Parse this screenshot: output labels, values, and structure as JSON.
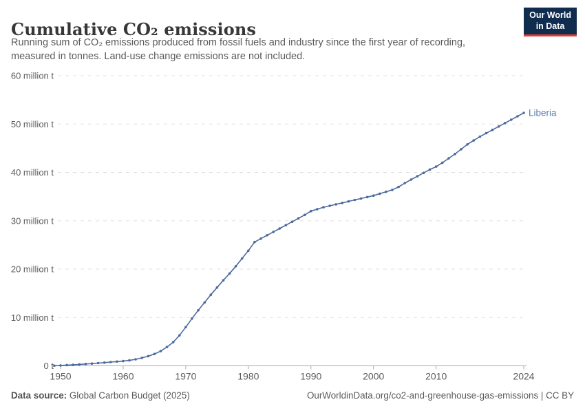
{
  "header": {
    "title": "Cumulative CO₂ emissions",
    "subtitle_line1": "Running sum of CO₂ emissions produced from fossil fuels and industry since the first year of recording,",
    "subtitle_line2": "measured in tonnes. Land-use change emissions are not included.",
    "logo_line1": "Our World",
    "logo_line2": "in Data"
  },
  "footer": {
    "datasource_label": "Data source:",
    "datasource_value": " Global Carbon Budget (2025)",
    "note_right": "OurWorldinData.org/co2-and-greenhouse-gas-emissions | CC BY"
  },
  "colors": {
    "line": "#4c6a9c",
    "end_label": "#567ab1",
    "grid": "#e0e0e0",
    "axis": "#a7a7a7",
    "tick_text": "#5b5b5b",
    "title_text": "#383636",
    "logo_bg": "#102d50",
    "logo_accent": "#e23d33"
  },
  "chart_data": {
    "type": "line",
    "title": "Cumulative CO₂ emissions",
    "unit": "tonnes",
    "grid": "dashed-horizontal",
    "legend": "end-of-line-label",
    "xlim": [
      1949,
      2024
    ],
    "ylim": [
      0,
      60
    ],
    "xticks": [
      {
        "value": 1950,
        "label": "1950"
      },
      {
        "value": 1960,
        "label": "1960"
      },
      {
        "value": 1970,
        "label": "1970"
      },
      {
        "value": 1980,
        "label": "1980"
      },
      {
        "value": 1990,
        "label": "1990"
      },
      {
        "value": 2000,
        "label": "2000"
      },
      {
        "value": 2010,
        "label": "2010"
      },
      {
        "value": 2024,
        "label": "2024"
      }
    ],
    "yticks": [
      {
        "value": 0,
        "label": "0 t"
      },
      {
        "value": 10,
        "label": "10 million t"
      },
      {
        "value": 20,
        "label": "20 million t"
      },
      {
        "value": 30,
        "label": "30 million t"
      },
      {
        "value": 40,
        "label": "40 million t"
      },
      {
        "value": 50,
        "label": "50 million t"
      },
      {
        "value": 60,
        "label": "60 million t"
      }
    ],
    "years": [
      1949,
      1950,
      1951,
      1952,
      1953,
      1954,
      1955,
      1956,
      1957,
      1958,
      1959,
      1960,
      1961,
      1962,
      1963,
      1964,
      1965,
      1966,
      1967,
      1968,
      1969,
      1970,
      1971,
      1972,
      1973,
      1974,
      1975,
      1976,
      1977,
      1978,
      1979,
      1980,
      1981,
      1982,
      1983,
      1984,
      1985,
      1986,
      1987,
      1988,
      1989,
      1990,
      1991,
      1992,
      1993,
      1994,
      1995,
      1996,
      1997,
      1998,
      1999,
      2000,
      2001,
      2002,
      2003,
      2004,
      2005,
      2006,
      2007,
      2008,
      2009,
      2010,
      2011,
      2012,
      2013,
      2014,
      2015,
      2016,
      2017,
      2018,
      2019,
      2020,
      2021,
      2022,
      2023,
      2024
    ],
    "series": [
      {
        "name": "Liberia",
        "values_million_t": [
          0.03,
          0.09,
          0.15,
          0.22,
          0.3,
          0.38,
          0.47,
          0.57,
          0.67,
          0.78,
          0.88,
          0.98,
          1.12,
          1.35,
          1.65,
          2.0,
          2.45,
          3.05,
          3.9,
          4.9,
          6.3,
          8.0,
          9.8,
          11.5,
          13.1,
          14.7,
          16.2,
          17.7,
          19.1,
          20.6,
          22.2,
          23.8,
          25.6,
          26.3,
          27.0,
          27.7,
          28.4,
          29.1,
          29.8,
          30.5,
          31.2,
          32.0,
          32.4,
          32.8,
          33.1,
          33.4,
          33.7,
          34.0,
          34.3,
          34.6,
          34.9,
          35.2,
          35.6,
          36.0,
          36.4,
          37.0,
          37.8,
          38.5,
          39.2,
          39.9,
          40.6,
          41.2,
          42.0,
          42.9,
          43.8,
          44.8,
          45.8,
          46.6,
          47.4,
          48.1,
          48.8,
          49.5,
          50.2,
          50.9,
          51.6,
          52.3
        ]
      }
    ]
  }
}
